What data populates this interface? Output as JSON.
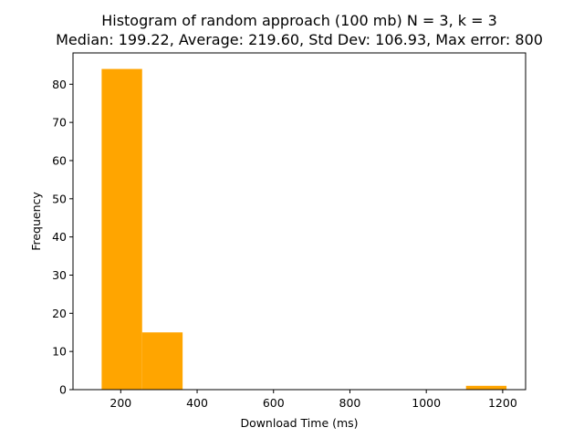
{
  "chart_data": {
    "type": "bar",
    "title_lines": [
      "Histogram of random approach (100 mb) N = 3, k = 3",
      "Median: 199.22, Average: 219.60, Std Dev: 106.93, Max error: 800"
    ],
    "xlabel": "Download Time (ms)",
    "ylabel": "Frequency",
    "bar_color": "#ffa500",
    "xlim": [
      75,
      1260
    ],
    "ylim": [
      0,
      88.2
    ],
    "xticks": [
      200,
      400,
      600,
      800,
      1000,
      1200
    ],
    "yticks": [
      0,
      10,
      20,
      30,
      40,
      50,
      60,
      70,
      80
    ],
    "bins": [
      {
        "x0": 150,
        "x1": 256,
        "count": 84
      },
      {
        "x0": 256,
        "x1": 362,
        "count": 15
      },
      {
        "x0": 362,
        "x1": 468,
        "count": 0
      },
      {
        "x0": 468,
        "x1": 574,
        "count": 0
      },
      {
        "x0": 574,
        "x1": 680,
        "count": 0
      },
      {
        "x0": 680,
        "x1": 786,
        "count": 0
      },
      {
        "x0": 786,
        "x1": 892,
        "count": 0
      },
      {
        "x0": 892,
        "x1": 998,
        "count": 0
      },
      {
        "x0": 998,
        "x1": 1104,
        "count": 0
      },
      {
        "x0": 1104,
        "x1": 1210,
        "count": 1
      }
    ],
    "grid": false,
    "legend": "none"
  }
}
